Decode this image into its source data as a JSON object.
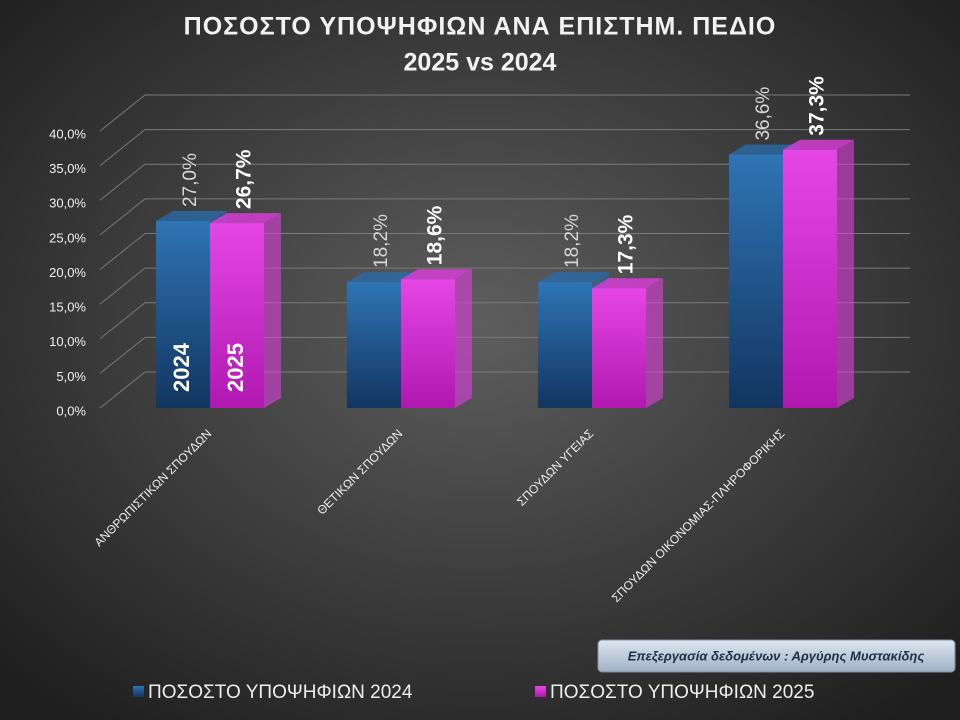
{
  "chart_data": {
    "type": "bar3d",
    "title": "ΠΟΣΟΣΤΟ ΥΠΟΨΗΦΙΩΝ ΑΝΑ ΕΠΙΣΤΗΜ. ΠΕΔΙΟ",
    "subtitle": "2025 vs 2024",
    "categories": [
      "ΑΝΘΡΩΠΙΣΤΙΚΩΝ ΣΠΟΥΔΩΝ",
      "ΘΕΤΙΚΩΝ ΣΠΟΥΔΩΝ",
      "ΣΠΟΥΔΩΝ ΥΓΕΙΑΣ",
      "ΣΠΟΥΔΩΝ ΟΙΚΟΝΟΜΙΑΣ-ΠΛΗΡΟΦΟΡΙΚΗΣ"
    ],
    "series": [
      {
        "name": "ΠΟΣΟΣΤΟ ΥΠΟΨΗΦΙΩΝ 2024",
        "color": "#2a6aa8",
        "values": [
          27.0,
          18.2,
          18.2,
          36.6
        ],
        "value_labels": [
          "27,0%",
          "18,2%",
          "18,2%",
          "36,6%"
        ]
      },
      {
        "name": "ΠΟΣΟΣΤΟ ΥΠΟΨΗΦΙΩΝ 2025",
        "color": "#dd3ddd",
        "values": [
          26.7,
          18.6,
          17.3,
          37.3
        ],
        "value_labels": [
          "26,7%",
          "18,6%",
          "17,3%",
          "37,3%"
        ]
      }
    ],
    "annotations": [
      "2024",
      "2025"
    ],
    "credit": "Επεξεργασία δεδομένων : Αργύρης Μυστακίδης",
    "ylim": [
      0,
      40
    ],
    "yticks": [
      {
        "value": 0,
        "label": "0,0%"
      },
      {
        "value": 5,
        "label": "5,0%"
      },
      {
        "value": 10,
        "label": "10,0%"
      },
      {
        "value": 15,
        "label": "15,0%"
      },
      {
        "value": 20,
        "label": "20,0%"
      },
      {
        "value": 25,
        "label": "25,0%"
      },
      {
        "value": 30,
        "label": "30,0%"
      },
      {
        "value": 35,
        "label": "35,0%"
      },
      {
        "value": 40,
        "label": "40,0%"
      }
    ],
    "grid": true
  }
}
